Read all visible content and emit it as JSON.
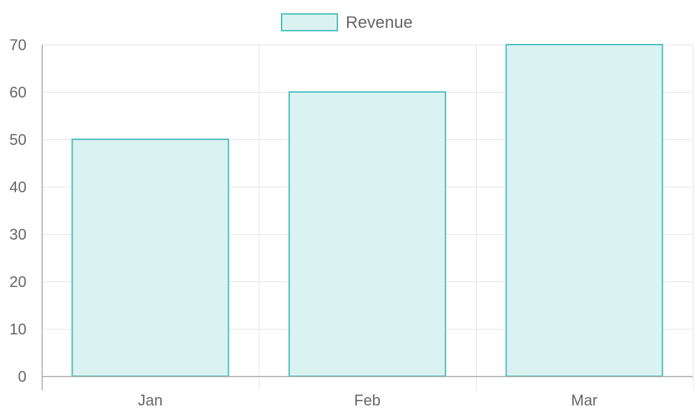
{
  "chart_data": {
    "type": "bar",
    "categories": [
      "Jan",
      "Feb",
      "Mar"
    ],
    "series": [
      {
        "name": "Revenue",
        "values": [
          50,
          60,
          70
        ],
        "fill": "#dbf2f2",
        "stroke": "#4bc0c0"
      }
    ],
    "ylim": [
      0,
      70
    ],
    "yticks": [
      0,
      10,
      20,
      30,
      40,
      50,
      60,
      70
    ],
    "grid": true,
    "legend": "top-center"
  },
  "colors": {
    "grid": "#e5e5e5",
    "axis": "#a6a6a6",
    "text": "#666666"
  }
}
